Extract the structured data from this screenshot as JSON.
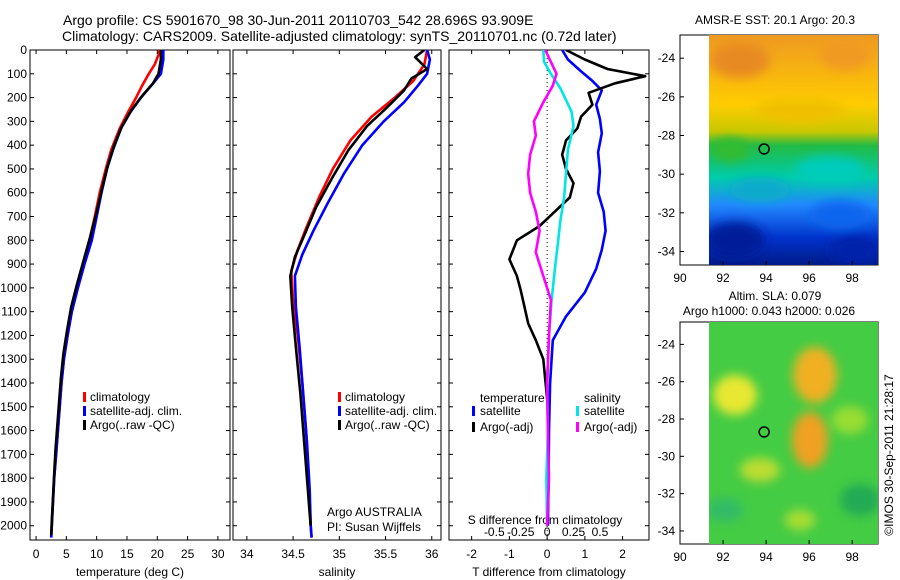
{
  "header": {
    "line1": "Argo profile: CS 5901670_98 30-Jun-2011 20110703_542 28.696S 93.909E",
    "line2": "Climatology: CARS2009. Satellite-adjusted climatology: synTS_20110701.nc (0.72d later)"
  },
  "watermark": "©IMOS 30-Sep-2011 21:28:17",
  "colors": {
    "climatology": "#ff0000",
    "satellite": "#0000ff",
    "argo": "#000000",
    "sal_satellite": "#00e5e5",
    "sal_argo": "#ff00ff"
  },
  "depth_axis": {
    "ticks": [
      0,
      100,
      200,
      300,
      400,
      500,
      600,
      700,
      800,
      900,
      1000,
      1100,
      1200,
      1300,
      1400,
      1500,
      1600,
      1700,
      1800,
      1900,
      2000
    ],
    "ylim": [
      0,
      2060
    ]
  },
  "chart_data": [
    {
      "type": "line",
      "panel": "temperature",
      "xlabel": "temperature (deg C)",
      "ylabel": "",
      "xlim": [
        -1,
        32
      ],
      "xticks": [
        0,
        5,
        10,
        15,
        20,
        25,
        30
      ],
      "legend": [
        "climatology",
        "satellite-adj. clim.",
        "Argo(..raw -QC)"
      ],
      "series": [
        {
          "name": "climatology",
          "color": "#ff0000",
          "points": [
            [
              20.4,
              0
            ],
            [
              20.2,
              20
            ],
            [
              19.6,
              60
            ],
            [
              18.6,
              100
            ],
            [
              17.5,
              150
            ],
            [
              16.5,
              200
            ],
            [
              15.2,
              260
            ],
            [
              13.8,
              330
            ],
            [
              12.4,
              420
            ],
            [
              11.5,
              500
            ],
            [
              10.5,
              600
            ],
            [
              9.7,
              700
            ],
            [
              8.8,
              800
            ],
            [
              7.8,
              900
            ],
            [
              6.8,
              1000
            ],
            [
              5.9,
              1100
            ],
            [
              5.2,
              1200
            ],
            [
              4.6,
              1300
            ],
            [
              4.2,
              1400
            ],
            [
              3.9,
              1500
            ],
            [
              3.6,
              1600
            ],
            [
              3.3,
              1700
            ],
            [
              3.0,
              1800
            ],
            [
              2.8,
              1900
            ],
            [
              2.6,
              2000
            ],
            [
              2.5,
              2050
            ]
          ]
        },
        {
          "name": "satellite-adj. clim.",
          "color": "#0000ff",
          "points": [
            [
              21.0,
              0
            ],
            [
              21.0,
              40
            ],
            [
              20.6,
              100
            ],
            [
              19.0,
              150
            ],
            [
              17.3,
              200
            ],
            [
              15.6,
              260
            ],
            [
              14.0,
              330
            ],
            [
              12.7,
              420
            ],
            [
              11.7,
              500
            ],
            [
              10.8,
              600
            ],
            [
              10.0,
              700
            ],
            [
              9.2,
              800
            ],
            [
              8.0,
              900
            ],
            [
              6.9,
              1000
            ],
            [
              5.9,
              1100
            ],
            [
              5.2,
              1200
            ],
            [
              4.6,
              1300
            ],
            [
              4.2,
              1400
            ],
            [
              3.9,
              1500
            ],
            [
              3.6,
              1600
            ],
            [
              3.3,
              1700
            ],
            [
              3.0,
              1800
            ],
            [
              2.8,
              1900
            ],
            [
              2.6,
              2000
            ],
            [
              2.5,
              2050
            ]
          ]
        },
        {
          "name": "Argo(..raw -QC)",
          "color": "#000000",
          "points": [
            [
              20.6,
              0
            ],
            [
              20.6,
              40
            ],
            [
              20.2,
              100
            ],
            [
              19.3,
              140
            ],
            [
              17.6,
              190
            ],
            [
              15.8,
              250
            ],
            [
              14.2,
              320
            ],
            [
              12.9,
              400
            ],
            [
              11.9,
              480
            ],
            [
              10.9,
              580
            ],
            [
              10.0,
              680
            ],
            [
              9.0,
              780
            ],
            [
              7.9,
              880
            ],
            [
              6.8,
              980
            ],
            [
              5.8,
              1080
            ],
            [
              5.1,
              1180
            ],
            [
              4.5,
              1280
            ],
            [
              4.1,
              1380
            ],
            [
              3.8,
              1480
            ],
            [
              3.5,
              1580
            ],
            [
              3.2,
              1680
            ],
            [
              3.0,
              1780
            ],
            [
              2.8,
              1880
            ],
            [
              2.6,
              1980
            ],
            [
              2.5,
              2040
            ]
          ]
        }
      ]
    },
    {
      "type": "line",
      "panel": "salinity",
      "xlabel": "salinity",
      "ylabel": "",
      "xlim": [
        33.85,
        36.1
      ],
      "xticks": [
        34,
        34.5,
        35,
        35.5,
        36
      ],
      "legend": [
        "climatology",
        "satellite-adj. clim.",
        "Argo(..raw -QC)"
      ],
      "annotation": [
        "Argo AUSTRALIA",
        "PI: Susan Wijffels"
      ],
      "series": [
        {
          "name": "climatology",
          "color": "#ff0000",
          "points": [
            [
              35.95,
              0
            ],
            [
              35.92,
              60
            ],
            [
              35.8,
              130
            ],
            [
              35.6,
              200
            ],
            [
              35.35,
              280
            ],
            [
              35.12,
              380
            ],
            [
              34.93,
              500
            ],
            [
              34.78,
              620
            ],
            [
              34.65,
              740
            ],
            [
              34.55,
              840
            ],
            [
              34.48,
              930
            ],
            [
              34.5,
              1050
            ],
            [
              34.55,
              1200
            ],
            [
              34.6,
              1400
            ],
            [
              34.64,
              1600
            ],
            [
              34.67,
              1800
            ],
            [
              34.69,
              2000
            ],
            [
              34.7,
              2050
            ]
          ]
        },
        {
          "name": "satellite-adj. clim.",
          "color": "#0000ff",
          "points": [
            [
              35.95,
              0
            ],
            [
              35.98,
              40
            ],
            [
              35.95,
              100
            ],
            [
              35.85,
              150
            ],
            [
              35.7,
              220
            ],
            [
              35.48,
              300
            ],
            [
              35.25,
              400
            ],
            [
              35.05,
              520
            ],
            [
              34.88,
              640
            ],
            [
              34.72,
              760
            ],
            [
              34.6,
              860
            ],
            [
              34.52,
              950
            ],
            [
              34.53,
              1080
            ],
            [
              34.57,
              1250
            ],
            [
              34.61,
              1450
            ],
            [
              34.65,
              1650
            ],
            [
              34.68,
              1850
            ],
            [
              34.69,
              2000
            ],
            [
              34.7,
              2050
            ]
          ]
        },
        {
          "name": "Argo(..raw -QC)",
          "color": "#000000",
          "points": [
            [
              35.92,
              0
            ],
            [
              35.82,
              30
            ],
            [
              35.95,
              80
            ],
            [
              35.78,
              120
            ],
            [
              35.7,
              170
            ],
            [
              35.52,
              240
            ],
            [
              35.3,
              320
            ],
            [
              35.1,
              420
            ],
            [
              34.92,
              540
            ],
            [
              34.75,
              660
            ],
            [
              34.62,
              780
            ],
            [
              34.52,
              870
            ],
            [
              34.47,
              950
            ],
            [
              34.49,
              1080
            ],
            [
              34.53,
              1250
            ],
            [
              34.58,
              1450
            ],
            [
              34.62,
              1650
            ],
            [
              34.66,
              1850
            ],
            [
              34.68,
              1950
            ],
            [
              34.69,
              2000
            ]
          ]
        }
      ]
    },
    {
      "type": "line",
      "panel": "difference",
      "xlabel": "T difference from climatology",
      "x2label": "S difference from climatology",
      "xlim": [
        -2.6,
        2.7
      ],
      "xticks": [
        -2,
        -1,
        0,
        1,
        2
      ],
      "x2ticks": [
        {
          "value": -0.5,
          "label": "-0.5"
        },
        {
          "value": -0.25,
          "label": "-0.25"
        },
        {
          "value": 0,
          "label": "0"
        },
        {
          "value": 0.25,
          "label": "0.25"
        },
        {
          "value": 0.5,
          "label": "0.5"
        }
      ],
      "legend_titles": [
        "temperature",
        "salinity"
      ],
      "legend": [
        "satellite",
        "Argo(-adj)",
        "satellite",
        "Argo(-adj)"
      ],
      "series": [
        {
          "name": "temperature satellite",
          "color": "#0000ff",
          "points": [
            [
              0.4,
              0
            ],
            [
              0.55,
              40
            ],
            [
              0.9,
              90
            ],
            [
              1.2,
              130
            ],
            [
              1.45,
              170
            ],
            [
              1.3,
              230
            ],
            [
              1.4,
              290
            ],
            [
              1.45,
              350
            ],
            [
              1.35,
              430
            ],
            [
              1.4,
              510
            ],
            [
              1.35,
              600
            ],
            [
              1.5,
              680
            ],
            [
              1.55,
              760
            ],
            [
              1.45,
              840
            ],
            [
              1.3,
              920
            ],
            [
              1.0,
              1020
            ],
            [
              0.5,
              1120
            ],
            [
              0.15,
              1220
            ],
            [
              0.08,
              1400
            ],
            [
              0.05,
              1600
            ],
            [
              0.04,
              1800
            ],
            [
              0.02,
              2000
            ]
          ]
        },
        {
          "name": "temperature Argo(-adj)",
          "color": "#000000",
          "points": [
            [
              0.5,
              0
            ],
            [
              1.0,
              40
            ],
            [
              1.6,
              80
            ],
            [
              2.6,
              110
            ],
            [
              1.8,
              140
            ],
            [
              1.1,
              180
            ],
            [
              1.2,
              230
            ],
            [
              0.9,
              280
            ],
            [
              0.8,
              330
            ],
            [
              0.5,
              380
            ],
            [
              0.4,
              440
            ],
            [
              0.5,
              500
            ],
            [
              0.7,
              560
            ],
            [
              0.6,
              620
            ],
            [
              0.2,
              680
            ],
            [
              -0.2,
              740
            ],
            [
              -0.8,
              800
            ],
            [
              -1.0,
              880
            ],
            [
              -0.8,
              950
            ],
            [
              -0.7,
              1010
            ],
            [
              -0.6,
              1080
            ],
            [
              -0.5,
              1150
            ],
            [
              -0.3,
              1220
            ],
            [
              -0.1,
              1300
            ],
            [
              0.02,
              1500
            ],
            [
              0.03,
              1700
            ],
            [
              0.02,
              1900
            ],
            [
              0.0,
              2000
            ]
          ]
        },
        {
          "name": "salinity satellite",
          "color": "#00e5e5",
          "points": [
            [
              -0.1,
              0
            ],
            [
              -0.08,
              50
            ],
            [
              0.1,
              100
            ],
            [
              0.35,
              160
            ],
            [
              0.65,
              260
            ],
            [
              0.7,
              320
            ],
            [
              0.55,
              420
            ],
            [
              0.5,
              520
            ],
            [
              0.45,
              620
            ],
            [
              0.35,
              720
            ],
            [
              0.28,
              820
            ],
            [
              0.22,
              900
            ],
            [
              0.12,
              1050
            ],
            [
              0.05,
              1200
            ],
            [
              0.0,
              1400
            ],
            [
              0.02,
              1600
            ],
            [
              -0.02,
              1800
            ],
            [
              0.0,
              2000
            ]
          ]
        },
        {
          "name": "salinity Argo(-adj)",
          "color": "#ff00ff",
          "points": [
            [
              -0.05,
              0
            ],
            [
              0.1,
              50
            ],
            [
              0.25,
              100
            ],
            [
              0.15,
              150
            ],
            [
              -0.1,
              220
            ],
            [
              -0.35,
              300
            ],
            [
              -0.3,
              360
            ],
            [
              -0.45,
              440
            ],
            [
              -0.5,
              520
            ],
            [
              -0.45,
              600
            ],
            [
              -0.3,
              680
            ],
            [
              -0.2,
              760
            ],
            [
              -0.3,
              850
            ],
            [
              -0.1,
              950
            ],
            [
              0.1,
              1050
            ],
            [
              0.05,
              1200
            ],
            [
              0.0,
              1400
            ],
            [
              0.02,
              1600
            ],
            [
              0.05,
              1800
            ],
            [
              0.0,
              2000
            ]
          ]
        }
      ]
    },
    {
      "type": "heatmap",
      "panel": "sst_map",
      "title": "AMSR-E SST: 20.1 Argo: 20.3",
      "xlim": [
        90,
        99.2
      ],
      "ylim": [
        -34.7,
        -22.8
      ],
      "xticks": [
        90,
        92,
        94,
        96,
        98
      ],
      "yticks": [
        -24,
        -26,
        -28,
        -30,
        -32,
        -34
      ],
      "marker": {
        "lon": 93.909,
        "lat": -28.696
      }
    },
    {
      "type": "heatmap",
      "panel": "sla_map",
      "title": "Altim. SLA: 0.079",
      "subtitle": "Argo h1000: 0.043 h2000: 0.026",
      "xlim": [
        90,
        99.2
      ],
      "ylim": [
        -34.7,
        -22.8
      ],
      "xticks": [
        90,
        92,
        94,
        96,
        98
      ],
      "yticks": [
        -24,
        -26,
        -28,
        -30,
        -32,
        -34
      ],
      "marker": {
        "lon": 93.909,
        "lat": -28.696
      }
    }
  ]
}
